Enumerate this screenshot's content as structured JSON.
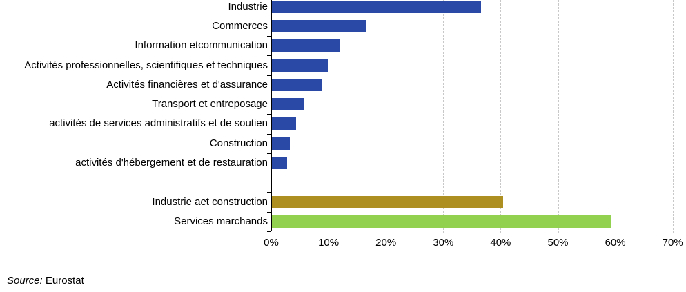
{
  "chart_data": {
    "type": "bar",
    "orientation": "horizontal",
    "title": "",
    "xlabel": "",
    "ylabel": "",
    "xlim": [
      0,
      70
    ],
    "x_tick_values": [
      0,
      10,
      20,
      30,
      40,
      50,
      60,
      70
    ],
    "x_tick_labels": [
      "0%",
      "10%",
      "20%",
      "30%",
      "40%",
      "50%",
      "60%",
      "70%"
    ],
    "grid": "vertical-dashed",
    "legend_position": "none",
    "unit": "percent",
    "categories": [
      "Industrie",
      "Commerces",
      "Information etcommunication",
      "Activités professionnelles, scientifiques et techniques",
      "Activités financières et d'assurance",
      "Transport et entreposage",
      "activités de services administratifs et de soutien",
      "Construction",
      "activités d'hébergement et de restauration",
      "",
      "Industrie aet construction",
      "Services marchands"
    ],
    "values": [
      36.5,
      16.5,
      11.8,
      9.8,
      8.8,
      5.7,
      4.2,
      3.1,
      2.7,
      null,
      40.3,
      59.2
    ],
    "bar_colors": [
      "#2A48A6",
      "#2A48A6",
      "#2A48A6",
      "#2A48A6",
      "#2A48A6",
      "#2A48A6",
      "#2A48A6",
      "#2A48A6",
      "#2A48A6",
      null,
      "#AD8F21",
      "#92D050"
    ]
  },
  "colors": {
    "bar_blue": "#2A48A6",
    "bar_gold": "#AD8F21",
    "bar_green": "#92D050",
    "gridline": "#C8C8C8",
    "axis": "#000000",
    "text": "#000000"
  },
  "source": {
    "prefix": "Source:",
    "text": " Eurostat"
  }
}
